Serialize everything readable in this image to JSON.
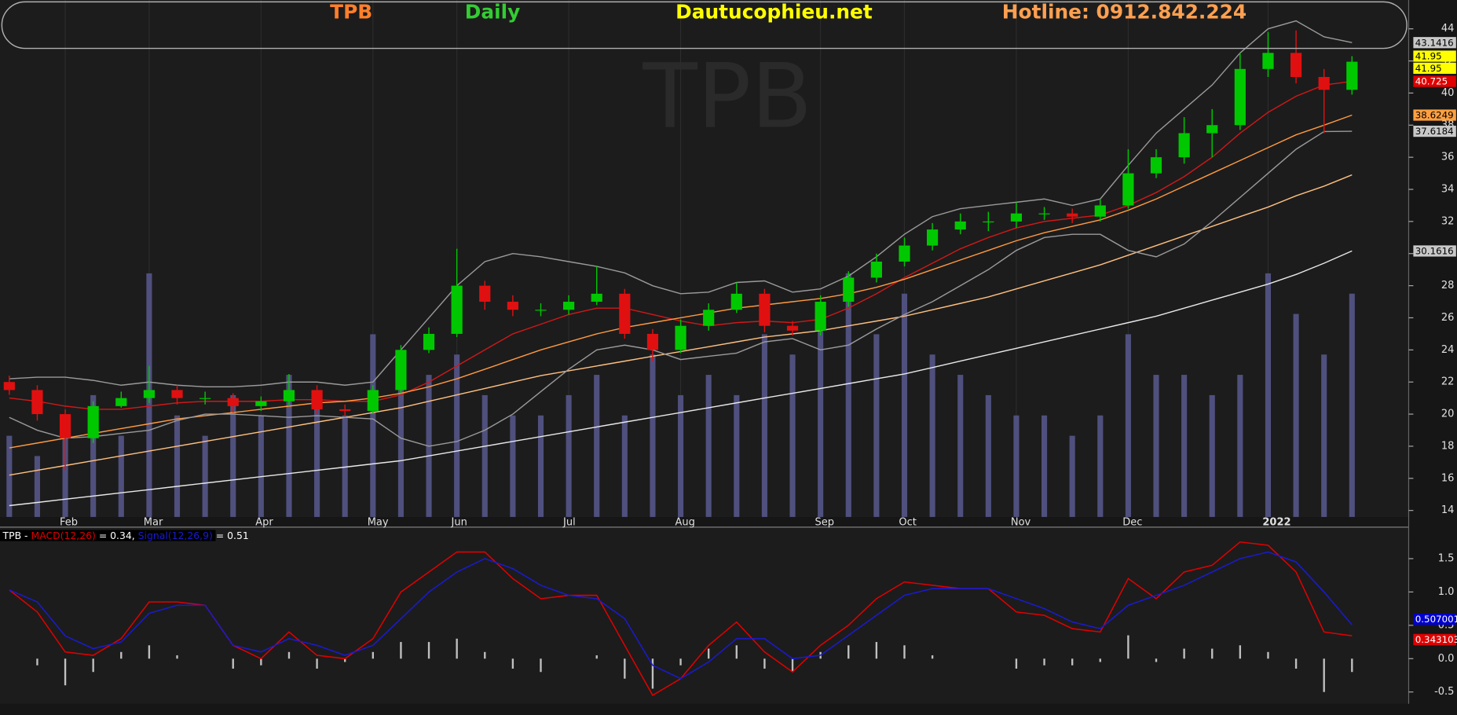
{
  "header": {
    "symbol": "TPB",
    "interval": "Daily",
    "site": "Dautucophieu.net",
    "hotline": "Hotline: 0912.842.224"
  },
  "chart_data": [
    {
      "type": "candlestick",
      "categories": [
        null,
        null,
        "Feb",
        null,
        null,
        "Mar",
        null,
        null,
        null,
        "Apr",
        null,
        null,
        null,
        "May",
        null,
        null,
        "Jun",
        null,
        null,
        null,
        "Jul",
        null,
        null,
        null,
        "Aug",
        null,
        null,
        null,
        null,
        "Sep",
        null,
        null,
        "Oct",
        null,
        null,
        null,
        "Nov",
        null,
        null,
        null,
        "Dec",
        null,
        null,
        null,
        null,
        "2022",
        null,
        null,
        null
      ],
      "open": [
        22,
        21.5,
        20,
        18.5,
        20.5,
        21,
        21.5,
        21,
        21,
        20.5,
        20.8,
        21.5,
        20.3,
        20.2,
        21.5,
        24,
        25,
        28,
        27,
        26.5,
        26.5,
        27,
        27.5,
        25,
        24,
        25.5,
        26.5,
        27.5,
        25.5,
        25.2,
        27,
        28.5,
        29.5,
        30.5,
        31.5,
        32,
        32,
        32.5,
        32.5,
        32.3,
        33,
        35,
        36,
        37.5,
        38,
        41.5,
        42.5,
        41,
        40.2
      ],
      "high": [
        22.4,
        21.8,
        20.3,
        20.8,
        21.4,
        23,
        21.8,
        21.4,
        21.3,
        21.1,
        22.5,
        21.8,
        20.6,
        21.8,
        24.3,
        25.4,
        30.3,
        28.3,
        27.4,
        26.9,
        27.4,
        29.2,
        27.8,
        25.3,
        25.9,
        26.9,
        28.2,
        27.8,
        25.8,
        27.4,
        28.9,
        30,
        31,
        31.9,
        32.5,
        32.6,
        33.2,
        32.9,
        32.8,
        33.4,
        36.5,
        36.5,
        38.5,
        39,
        42.5,
        43.8,
        43.9,
        41.5,
        42.3
      ],
      "low": [
        21.2,
        19.6,
        16.5,
        18.2,
        20.4,
        20.7,
        20.6,
        20.6,
        20.1,
        20.2,
        20.5,
        20.0,
        19.9,
        20.0,
        21.3,
        23.8,
        24.8,
        26.5,
        26.1,
        26.1,
        26.2,
        26.8,
        24.7,
        23.3,
        23.8,
        25.2,
        26.3,
        25.1,
        24.9,
        24.9,
        26.7,
        28.2,
        29.2,
        30.2,
        31.2,
        31.4,
        31.6,
        32.1,
        31.9,
        32,
        32.8,
        34.7,
        35.6,
        36,
        37.7,
        41,
        40.6,
        37.5,
        39.9
      ],
      "close": [
        21.5,
        20,
        18.5,
        20.5,
        21,
        21.5,
        21,
        21,
        20.5,
        20.8,
        21.5,
        20.3,
        20.2,
        21.5,
        24,
        25,
        28,
        27,
        26.5,
        26.5,
        27,
        27.5,
        25,
        24,
        25.5,
        26.5,
        27.5,
        25.5,
        25.2,
        27,
        28.5,
        29.5,
        30.5,
        31.5,
        32,
        32,
        32.5,
        32.5,
        32.3,
        33,
        35,
        36,
        37.5,
        38,
        41.5,
        42.5,
        41,
        40.2,
        41.95
      ],
      "volume": [
        4,
        3,
        5,
        6,
        4,
        12,
        5,
        4,
        6,
        5,
        7,
        6,
        5,
        9,
        8,
        7,
        8,
        6,
        5,
        5,
        6,
        7,
        5,
        8,
        6,
        7,
        6,
        9,
        8,
        10,
        12,
        9,
        11,
        8,
        7,
        6,
        5,
        5,
        4,
        5,
        9,
        7,
        7,
        6,
        7,
        12,
        10,
        8,
        11
      ],
      "volume_color": "#50507e",
      "up_color": "#00c800",
      "down_color": "#e01010",
      "close_tag_colors": [
        "#ffff00",
        "#ffff00"
      ],
      "series": [
        {
          "color": "#d01818",
          "values": [
            21,
            20.8,
            20.5,
            20.3,
            20.3,
            20.5,
            20.7,
            20.8,
            20.8,
            20.8,
            20.9,
            20.9,
            20.8,
            20.8,
            21.2,
            22,
            23,
            24,
            25,
            25.6,
            26.2,
            26.6,
            26.6,
            26.2,
            25.8,
            25.5,
            25.7,
            25.8,
            25.7,
            25.9,
            26.6,
            27.5,
            28.5,
            29.4,
            30.3,
            31,
            31.6,
            32,
            32.2,
            32.4,
            33,
            33.8,
            34.8,
            36,
            37.5,
            38.8,
            39.8,
            40.5,
            40.725
          ],
          "tag_color": "#e00000",
          "tag_text_color": "#ffffff"
        },
        {
          "color": "#ff9a40",
          "values": [
            17.9,
            18.2,
            18.5,
            18.8,
            19.1,
            19.4,
            19.7,
            19.9,
            20.1,
            20.3,
            20.5,
            20.7,
            20.8,
            21,
            21.3,
            21.7,
            22.2,
            22.8,
            23.4,
            24,
            24.5,
            25,
            25.4,
            25.7,
            26,
            26.3,
            26.6,
            26.8,
            27,
            27.2,
            27.5,
            27.9,
            28.4,
            29,
            29.6,
            30.2,
            30.8,
            31.3,
            31.7,
            32.1,
            32.7,
            33.4,
            34.2,
            35,
            35.8,
            36.6,
            37.4,
            38,
            38.6249
          ],
          "tag_color": "#ffa040",
          "tag_text_color": "#000000"
        },
        {
          "color": "#ffc080",
          "values": [
            16.2,
            16.5,
            16.8,
            17.1,
            17.4,
            17.7,
            18,
            18.3,
            18.6,
            18.9,
            19.2,
            19.5,
            19.8,
            20.1,
            20.4,
            20.8,
            21.2,
            21.6,
            22,
            22.4,
            22.7,
            23,
            23.3,
            23.6,
            23.9,
            24.2,
            24.5,
            24.8,
            25,
            25.2,
            25.5,
            25.8,
            26.1,
            26.5,
            26.9,
            27.3,
            27.8,
            28.3,
            28.8,
            29.3,
            29.9,
            30.5,
            31.1,
            31.7,
            32.3,
            32.9,
            33.6,
            34.2,
            34.9
          ]
        },
        {
          "color": "#e8e8e8",
          "values": [
            14.3,
            14.5,
            14.7,
            14.9,
            15.1,
            15.3,
            15.5,
            15.7,
            15.9,
            16.1,
            16.3,
            16.5,
            16.7,
            16.9,
            17.1,
            17.4,
            17.7,
            18,
            18.3,
            18.6,
            18.9,
            19.2,
            19.5,
            19.8,
            20.1,
            20.4,
            20.7,
            21,
            21.3,
            21.6,
            21.9,
            22.2,
            22.5,
            22.9,
            23.3,
            23.7,
            24.1,
            24.5,
            24.9,
            25.3,
            25.7,
            26.1,
            26.6,
            27.1,
            27.6,
            28.1,
            28.7,
            29.4,
            30.1616
          ],
          "tag_color": "#c8c8c8",
          "tag_text_color": "#000000"
        },
        {
          "color": "#9a9a9a",
          "values": [
            22.2,
            22.3,
            22.3,
            22.1,
            21.8,
            22,
            21.8,
            21.7,
            21.7,
            21.8,
            22,
            22,
            21.8,
            22,
            24,
            26,
            28,
            29.5,
            30,
            29.8,
            29.5,
            29.2,
            28.8,
            28,
            27.5,
            27.6,
            28.2,
            28.3,
            27.6,
            27.8,
            28.6,
            29.8,
            31.2,
            32.3,
            32.8,
            33,
            33.2,
            33.4,
            33,
            33.4,
            35.5,
            37.5,
            39,
            40.5,
            42.5,
            44,
            44.5,
            43.5,
            43.1416
          ],
          "tag_color": "#c8c8c8",
          "tag_text_color": "#000000"
        },
        {
          "color": "#9a9a9a",
          "values": [
            19.8,
            19,
            18.5,
            18.6,
            18.8,
            19,
            19.6,
            20,
            20,
            19.9,
            19.8,
            19.9,
            19.8,
            19.7,
            18.5,
            18,
            18.3,
            19,
            20,
            21.4,
            22.8,
            24,
            24.3,
            24,
            23.4,
            23.6,
            23.8,
            24.5,
            24.7,
            24,
            24.3,
            25.3,
            26.2,
            27,
            28,
            29,
            30.2,
            31,
            31.2,
            31.2,
            30.2,
            29.8,
            30.6,
            32,
            33.5,
            35,
            36.5,
            37.6,
            37.6184
          ],
          "tag_color": "#c8c8c8",
          "tag_text_color": "#000000"
        }
      ],
      "ylim": [
        14,
        44
      ],
      "yticks": [
        14,
        16,
        18,
        20,
        22,
        24,
        26,
        28,
        30,
        32,
        34,
        36,
        38,
        40,
        42,
        44
      ],
      "grid": true
    },
    {
      "type": "macd",
      "title": "TPB -",
      "series": [
        {
          "name": "MACD(12,26)",
          "color": "#e00000",
          "values": [
            1.03,
            0.7,
            0.1,
            0.05,
            0.3,
            0.85,
            0.85,
            0.8,
            0.2,
            0,
            0.4,
            0.05,
            0,
            0.3,
            1,
            1.3,
            1.6,
            1.6,
            1.2,
            0.9,
            0.95,
            0.95,
            0.2,
            -0.55,
            -0.3,
            0.2,
            0.55,
            0.1,
            -0.2,
            0.2,
            0.5,
            0.9,
            1.15,
            1.1,
            1.05,
            1.05,
            0.7,
            0.65,
            0.45,
            0.4,
            1.2,
            0.9,
            1.3,
            1.4,
            1.75,
            1.7,
            1.3,
            0.4,
            0.343103
          ],
          "value_labels": [
            null,
            null,
            null,
            null,
            null,
            null,
            null,
            null,
            null,
            null,
            null,
            null,
            null,
            null,
            null,
            null,
            null,
            null,
            null,
            null,
            null,
            null,
            null,
            null,
            null,
            null,
            null,
            null,
            null,
            null,
            null,
            null,
            null,
            null,
            null,
            null,
            null,
            null,
            null,
            null,
            null,
            null,
            null,
            null,
            null,
            null,
            null,
            null,
            "= 0.34,"
          ],
          "tag_color": "#e00000",
          "tag_text_color": "#ffffff"
        },
        {
          "name": "Signal(12,26,9)",
          "color": "#1a1ad0",
          "values": [
            1.03,
            0.85,
            0.34,
            0.15,
            0.25,
            0.68,
            0.8,
            0.8,
            0.2,
            0.1,
            0.3,
            0.2,
            0.05,
            0.2,
            0.6,
            1,
            1.3,
            1.5,
            1.35,
            1.1,
            0.95,
            0.9,
            0.6,
            -0.1,
            -0.3,
            -0.05,
            0.3,
            0.3,
            0,
            0.05,
            0.35,
            0.65,
            0.95,
            1.05,
            1.05,
            1.05,
            0.9,
            0.75,
            0.55,
            0.45,
            0.8,
            0.95,
            1.1,
            1.3,
            1.5,
            1.6,
            1.45,
            1,
            0.507001
          ],
          "value_labels": [
            null,
            null,
            null,
            null,
            null,
            null,
            null,
            null,
            null,
            null,
            null,
            null,
            null,
            null,
            null,
            null,
            null,
            null,
            null,
            null,
            null,
            null,
            null,
            null,
            null,
            null,
            null,
            null,
            null,
            null,
            null,
            null,
            null,
            null,
            null,
            null,
            null,
            null,
            null,
            null,
            null,
            null,
            null,
            null,
            null,
            null,
            null,
            null,
            "= 0.51"
          ],
          "tag_color": "#0000d0",
          "tag_text_color": "#ffffff"
        }
      ],
      "histogram": [
        0,
        -0.1,
        -0.4,
        -0.2,
        0.1,
        0.2,
        0.05,
        0,
        -0.15,
        -0.1,
        0.1,
        -0.15,
        -0.05,
        0.1,
        0.25,
        0.25,
        0.3,
        0.1,
        -0.15,
        -0.2,
        0,
        0.05,
        -0.3,
        -0.45,
        -0.1,
        0.15,
        0.2,
        -0.15,
        -0.2,
        0.1,
        0.2,
        0.25,
        0.2,
        0.05,
        0,
        0,
        -0.15,
        -0.1,
        -0.1,
        -0.05,
        0.35,
        -0.05,
        0.15,
        0.15,
        0.2,
        0.1,
        -0.15,
        -0.5,
        -0.2
      ],
      "histogram_color": "#c0c0c0",
      "ylim": [
        -0.65,
        1.93
      ],
      "yticks": [
        -0.5,
        {
          "value": 0,
          "label": "0.0"
        },
        0.5,
        {
          "value": 1,
          "label": "1.0"
        },
        1.5
      ]
    }
  ]
}
